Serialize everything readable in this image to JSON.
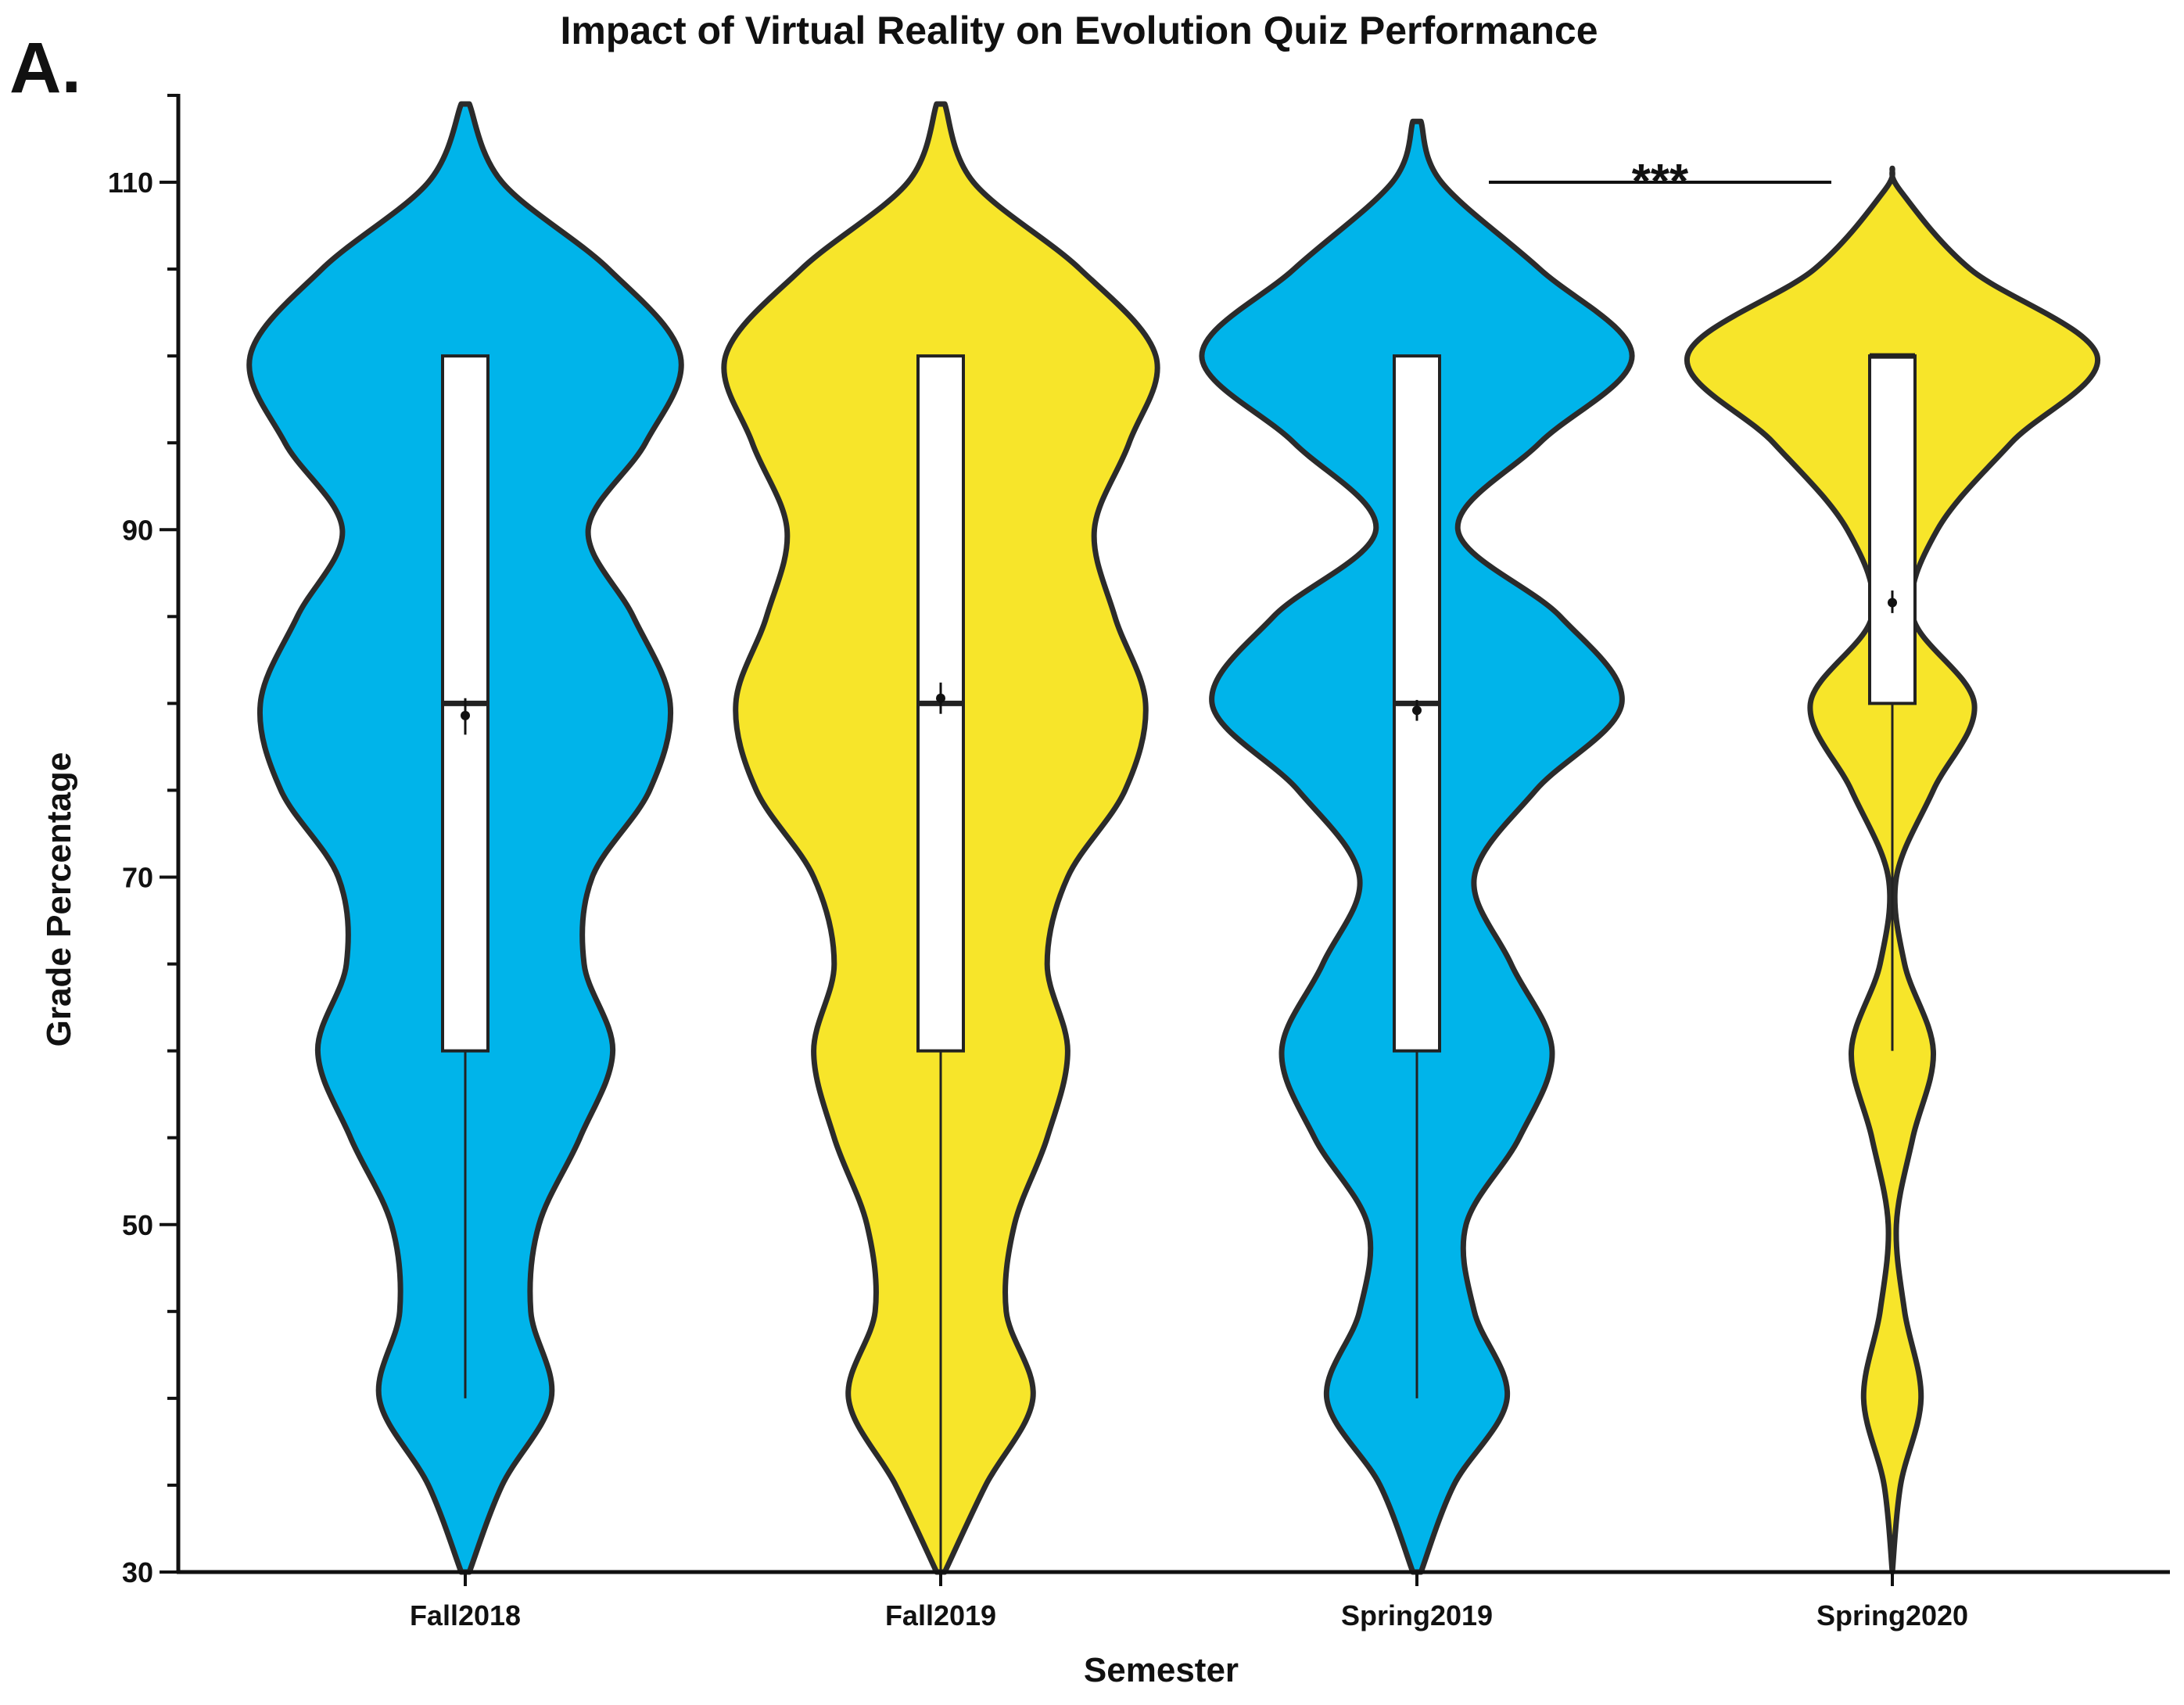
{
  "chart_data": {
    "type": "violin",
    "title": "Impact of Virtual Reality on Evolution Quiz Performance",
    "panel_label": "A.",
    "xlabel": "Semester",
    "ylabel": "Grade Percentage",
    "ylim": [
      30,
      115
    ],
    "yticks_major": [
      30,
      50,
      70,
      90,
      110
    ],
    "ytick_labels": [
      "30",
      "50",
      "70",
      "90",
      "110"
    ],
    "yticks_minor_step": 5,
    "grid": false,
    "legend": "none",
    "categories": [
      "Fall2018",
      "Fall2019",
      "Spring2019",
      "Spring2020"
    ],
    "series": [
      {
        "category": "Fall2018",
        "color": "#00b4ea",
        "density": [
          [
            30,
            0.02
          ],
          [
            35,
            0.18
          ],
          [
            40,
            0.42
          ],
          [
            45,
            0.32
          ],
          [
            50,
            0.36
          ],
          [
            55,
            0.56
          ],
          [
            60,
            0.72
          ],
          [
            65,
            0.58
          ],
          [
            70,
            0.62
          ],
          [
            75,
            0.9
          ],
          [
            80,
            1.0
          ],
          [
            85,
            0.82
          ],
          [
            90,
            0.6
          ],
          [
            95,
            0.88
          ],
          [
            100,
            1.05
          ],
          [
            105,
            0.7
          ],
          [
            110,
            0.18
          ],
          [
            114.5,
            0.02
          ]
        ],
        "box": {
          "q1": 60,
          "median": 80,
          "q3": 100,
          "whisker_low": 40,
          "whisker_high": 100
        },
        "mean": 79.3,
        "mean_ci": [
          78.2,
          80.3
        ]
      },
      {
        "category": "Fall2019",
        "color": "#f7e52a",
        "density": [
          [
            30,
            0.02
          ],
          [
            35,
            0.22
          ],
          [
            40,
            0.45
          ],
          [
            45,
            0.32
          ],
          [
            50,
            0.36
          ],
          [
            55,
            0.52
          ],
          [
            60,
            0.62
          ],
          [
            65,
            0.52
          ],
          [
            70,
            0.62
          ],
          [
            75,
            0.9
          ],
          [
            80,
            1.0
          ],
          [
            85,
            0.85
          ],
          [
            90,
            0.75
          ],
          [
            95,
            0.92
          ],
          [
            100,
            1.05
          ],
          [
            105,
            0.68
          ],
          [
            110,
            0.16
          ],
          [
            114.5,
            0.02
          ]
        ],
        "box": {
          "q1": 60,
          "median": 80,
          "q3": 100,
          "whisker_low": 30,
          "whisker_high": 100
        },
        "mean": 80.3,
        "mean_ci": [
          79.4,
          81.2
        ]
      },
      {
        "category": "Spring2019",
        "color": "#00b4ea",
        "density": [
          [
            30,
            0.02
          ],
          [
            35,
            0.18
          ],
          [
            40,
            0.44
          ],
          [
            45,
            0.28
          ],
          [
            50,
            0.24
          ],
          [
            55,
            0.5
          ],
          [
            60,
            0.66
          ],
          [
            65,
            0.46
          ],
          [
            70,
            0.28
          ],
          [
            75,
            0.58
          ],
          [
            80,
            1.0
          ],
          [
            85,
            0.7
          ],
          [
            90,
            0.2
          ],
          [
            95,
            0.6
          ],
          [
            100,
            1.05
          ],
          [
            105,
            0.6
          ],
          [
            110,
            0.12
          ],
          [
            113.5,
            0.02
          ]
        ],
        "box": {
          "q1": 60,
          "median": 80,
          "q3": 100,
          "whisker_low": 40,
          "whisker_high": 100
        },
        "mean": 79.6,
        "mean_ci": [
          79.0,
          80.2
        ]
      },
      {
        "category": "Spring2020",
        "color": "#f7e52a",
        "density": [
          [
            30,
            0.0
          ],
          [
            35,
            0.04
          ],
          [
            40,
            0.14
          ],
          [
            45,
            0.06
          ],
          [
            50,
            0.02
          ],
          [
            55,
            0.1
          ],
          [
            60,
            0.2
          ],
          [
            65,
            0.06
          ],
          [
            70,
            0.02
          ],
          [
            75,
            0.2
          ],
          [
            80,
            0.4
          ],
          [
            85,
            0.1
          ],
          [
            90,
            0.22
          ],
          [
            95,
            0.58
          ],
          [
            100,
            1.0
          ],
          [
            105,
            0.38
          ],
          [
            109.5,
            0.04
          ],
          [
            110.8,
            0.0
          ]
        ],
        "box": {
          "q1": 80,
          "median": 100,
          "q3": 100,
          "whisker_low": 60,
          "whisker_high": 100
        },
        "mean": 85.8,
        "mean_ci": [
          85.2,
          86.5
        ]
      }
    ],
    "annotations": [
      {
        "text": "***",
        "from": "Spring2019",
        "to": "Spring2020",
        "y": 110
      }
    ]
  }
}
